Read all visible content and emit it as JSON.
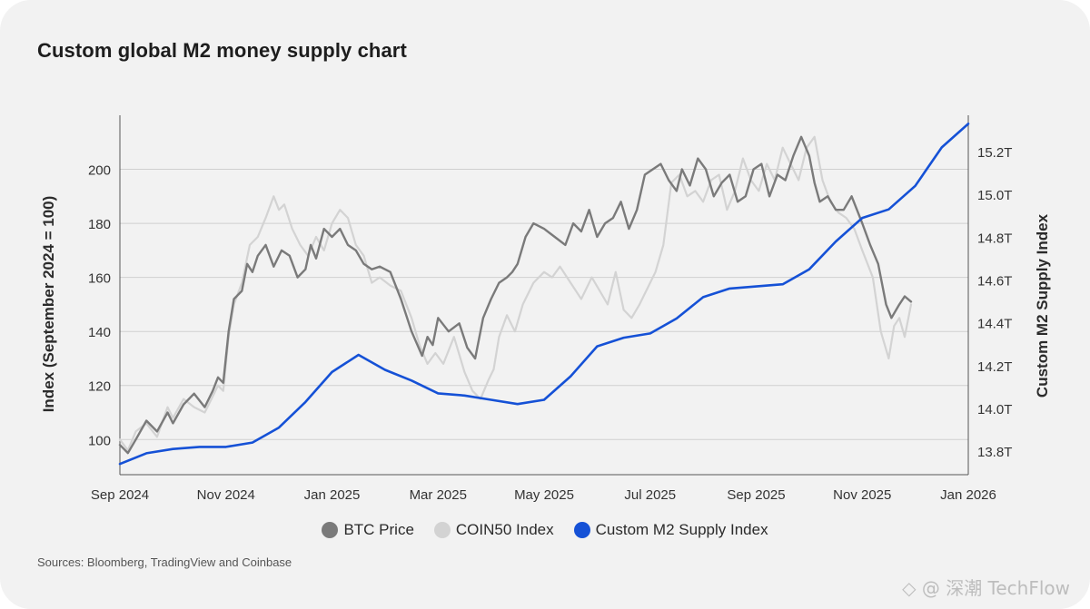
{
  "title": "Custom global M2 money supply chart",
  "source": "Sources: Bloomberg, TradingView and Coinbase",
  "watermark": "◇ @ 深潮 TechFlow",
  "colors": {
    "btc": "#7a7a7a",
    "coin50": "#d3d3d3",
    "m2": "#1551d6",
    "grid": "#cfcfcf",
    "axis": "#555555"
  },
  "chart_data": {
    "type": "line",
    "title": "Custom global M2 money supply chart",
    "xlabel": "",
    "ylabel": "Index (September 2024 = 100)",
    "y2label": "Custom M2 Supply Index",
    "xlim": [
      0,
      16
    ],
    "ylim": [
      87,
      220
    ],
    "y2lim": [
      13.69,
      15.37
    ],
    "x_ticks": [
      {
        "v": 0,
        "label": "Sep 2024"
      },
      {
        "v": 2,
        "label": "Nov 2024"
      },
      {
        "v": 4,
        "label": "Jan 2025"
      },
      {
        "v": 6,
        "label": "Mar 2025"
      },
      {
        "v": 8,
        "label": "May 2025"
      },
      {
        "v": 10,
        "label": "Jul 2025"
      },
      {
        "v": 12,
        "label": "Sep 2025"
      },
      {
        "v": 14,
        "label": "Nov 2025"
      },
      {
        "v": 16,
        "label": "Jan 2026"
      }
    ],
    "y_ticks": [
      100,
      120,
      140,
      160,
      180,
      200
    ],
    "y2_ticks": [
      {
        "v": 13.8,
        "label": "13.8T"
      },
      {
        "v": 14.0,
        "label": "14.0T"
      },
      {
        "v": 14.2,
        "label": "14.2T"
      },
      {
        "v": 14.4,
        "label": "14.4T"
      },
      {
        "v": 14.6,
        "label": "14.6T"
      },
      {
        "v": 14.8,
        "label": "14.8T"
      },
      {
        "v": 15.0,
        "label": "15.0T"
      },
      {
        "v": 15.2,
        "label": "15.2T"
      }
    ],
    "legend": [
      "BTC Price",
      "COIN50 Index",
      "Custom M2 Supply Index"
    ],
    "series": [
      {
        "name": "BTC Price",
        "axis": "left",
        "x": [
          0,
          0.15,
          0.3,
          0.5,
          0.7,
          0.9,
          1.0,
          1.2,
          1.4,
          1.6,
          1.75,
          1.85,
          1.95,
          2.05,
          2.15,
          2.3,
          2.4,
          2.5,
          2.6,
          2.75,
          2.9,
          3.05,
          3.2,
          3.35,
          3.5,
          3.6,
          3.7,
          3.85,
          4.0,
          4.15,
          4.3,
          4.45,
          4.6,
          4.75,
          4.9,
          5.1,
          5.3,
          5.5,
          5.7,
          5.8,
          5.9,
          6.0,
          6.2,
          6.4,
          6.55,
          6.7,
          6.85,
          7.0,
          7.15,
          7.3,
          7.4,
          7.5,
          7.65,
          7.8,
          8.0,
          8.2,
          8.4,
          8.55,
          8.7,
          8.85,
          9.0,
          9.15,
          9.3,
          9.45,
          9.6,
          9.75,
          9.9,
          10.05,
          10.2,
          10.35,
          10.5,
          10.6,
          10.75,
          10.9,
          11.05,
          11.2,
          11.35,
          11.5,
          11.65,
          11.8,
          11.95,
          12.1,
          12.25,
          12.4,
          12.55,
          12.7,
          12.85,
          13.0,
          13.1,
          13.2,
          13.35,
          13.5,
          13.65,
          13.8,
          14.0,
          14.15,
          14.3,
          14.45,
          14.55,
          14.7,
          14.8,
          14.92
        ],
        "values": [
          98,
          95,
          100,
          107,
          103,
          110,
          106,
          113,
          117,
          112,
          118,
          123,
          121,
          140,
          152,
          155,
          165,
          162,
          168,
          172,
          164,
          170,
          168,
          160,
          163,
          172,
          167,
          178,
          175,
          178,
          172,
          170,
          165,
          163,
          164,
          162,
          152,
          140,
          131,
          138,
          135,
          145,
          140,
          143,
          134,
          130,
          145,
          152,
          158,
          160,
          162,
          165,
          175,
          180,
          178,
          175,
          172,
          180,
          177,
          185,
          175,
          180,
          182,
          188,
          178,
          185,
          198,
          200,
          202,
          196,
          192,
          200,
          194,
          204,
          200,
          190,
          195,
          198,
          188,
          190,
          200,
          202,
          190,
          198,
          196,
          205,
          212,
          205,
          195,
          188,
          190,
          185,
          185,
          190,
          180,
          172,
          165,
          150,
          145,
          150,
          153,
          151
        ]
      },
      {
        "name": "COIN50 Index",
        "axis": "left",
        "x": [
          0,
          0.15,
          0.3,
          0.5,
          0.7,
          0.9,
          1.0,
          1.2,
          1.4,
          1.6,
          1.75,
          1.85,
          1.95,
          2.05,
          2.15,
          2.3,
          2.45,
          2.6,
          2.75,
          2.9,
          3.0,
          3.1,
          3.25,
          3.4,
          3.55,
          3.7,
          3.85,
          4.0,
          4.15,
          4.3,
          4.45,
          4.6,
          4.75,
          4.9,
          5.1,
          5.3,
          5.5,
          5.65,
          5.8,
          5.95,
          6.1,
          6.3,
          6.5,
          6.65,
          6.8,
          6.95,
          7.05,
          7.15,
          7.3,
          7.45,
          7.6,
          7.8,
          8.0,
          8.15,
          8.3,
          8.5,
          8.7,
          8.9,
          9.05,
          9.2,
          9.35,
          9.5,
          9.65,
          9.8,
          9.95,
          10.1,
          10.25,
          10.4,
          10.55,
          10.7,
          10.85,
          11.0,
          11.15,
          11.3,
          11.45,
          11.6,
          11.75,
          11.9,
          12.05,
          12.2,
          12.35,
          12.5,
          12.65,
          12.8,
          12.95,
          13.1,
          13.25,
          13.4,
          13.55,
          13.7,
          13.85,
          14.0,
          14.2,
          14.35,
          14.5,
          14.6,
          14.7,
          14.8,
          14.92
        ],
        "values": [
          100,
          96,
          103,
          106,
          101,
          112,
          108,
          115,
          112,
          110,
          116,
          120,
          118,
          138,
          150,
          158,
          172,
          175,
          182,
          190,
          185,
          187,
          178,
          172,
          168,
          175,
          170,
          180,
          185,
          182,
          172,
          168,
          158,
          160,
          157,
          155,
          145,
          135,
          128,
          132,
          128,
          138,
          125,
          118,
          115,
          122,
          126,
          138,
          146,
          140,
          150,
          158,
          162,
          160,
          164,
          158,
          152,
          160,
          155,
          150,
          162,
          148,
          145,
          150,
          156,
          162,
          172,
          195,
          198,
          190,
          192,
          188,
          196,
          198,
          185,
          192,
          204,
          196,
          192,
          202,
          196,
          208,
          202,
          196,
          208,
          212,
          196,
          188,
          184,
          182,
          178,
          170,
          160,
          140,
          130,
          142,
          145,
          138,
          150
        ]
      },
      {
        "name": "Custom M2 Supply Index",
        "axis": "right",
        "x": [
          0,
          0.5,
          1.0,
          1.5,
          2.0,
          2.5,
          3.0,
          3.5,
          4.0,
          4.5,
          5.0,
          5.5,
          6.0,
          6.5,
          7.0,
          7.5,
          8.0,
          8.5,
          9.0,
          9.5,
          10.0,
          10.5,
          11.0,
          11.5,
          12.0,
          12.5,
          13.0,
          13.5,
          14.0,
          14.5,
          15.0,
          15.5,
          16.0
        ],
        "values": [
          13.74,
          13.79,
          13.81,
          13.82,
          13.82,
          13.84,
          13.91,
          14.03,
          14.17,
          14.25,
          14.18,
          14.13,
          14.07,
          14.06,
          14.04,
          14.02,
          14.04,
          14.15,
          14.29,
          14.33,
          14.35,
          14.42,
          14.52,
          14.56,
          14.57,
          14.58,
          14.65,
          14.78,
          14.89,
          14.93,
          15.04,
          15.22,
          15.33
        ]
      }
    ]
  }
}
